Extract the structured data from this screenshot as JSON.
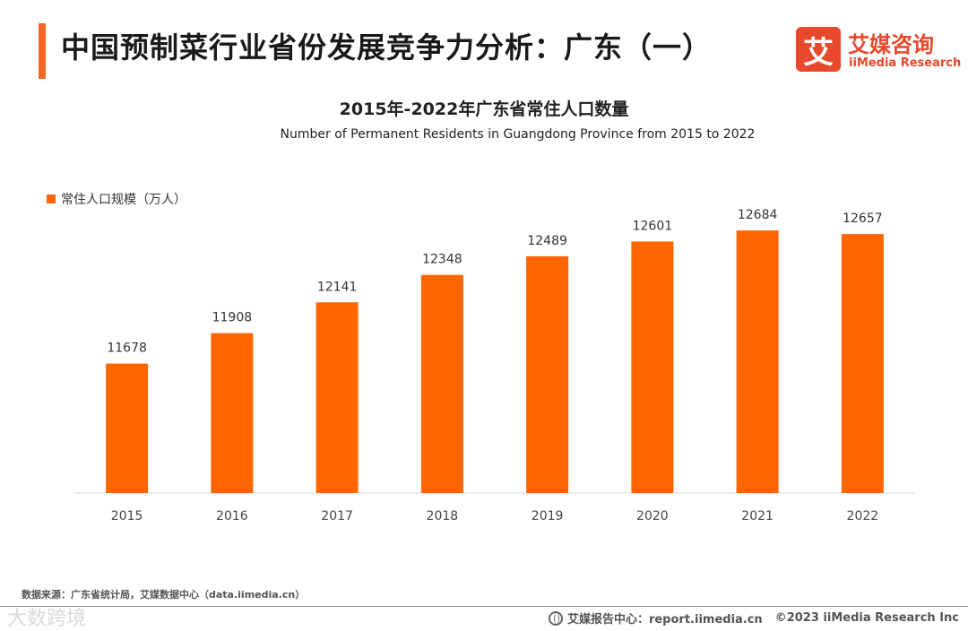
{
  "header": {
    "title": "中国预制菜行业省份发展竞争力分析：广东（一）"
  },
  "logo": {
    "mark": "艾",
    "name_cn": "艾媒咨询",
    "name_en": "iiMedia Research"
  },
  "chart_data": {
    "type": "bar",
    "title": "2015年-2022年广东省常住人口数量",
    "subtitle": "Number of Permanent Residents in Guangdong Province from 2015 to 2022",
    "categories": [
      "2015",
      "2016",
      "2017",
      "2018",
      "2019",
      "2020",
      "2021",
      "2022"
    ],
    "series": [
      {
        "name": "常住人口规模（万人）",
        "values": [
          11678,
          11908,
          12141,
          12348,
          12489,
          12601,
          12684,
          12657
        ],
        "color": "#ff6600"
      }
    ],
    "xlabel": "",
    "ylabel": "",
    "ylim": [
      10700,
      12800
    ],
    "grid": false,
    "legend": "top-left",
    "data_labels": true
  },
  "source": "数据来源：广东省统计局，艾媒数据中心（data.iimedia.cn）",
  "watermark": "大数跨境",
  "footer": {
    "report_center": "艾媒报告中心：report.iimedia.cn",
    "copyright": "©2023  iiMedia Research  Inc"
  }
}
